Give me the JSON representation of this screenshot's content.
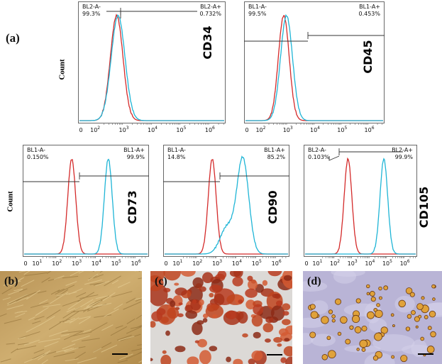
{
  "figure": {
    "panel_a_label": "(a)",
    "count_label": "Count",
    "micro_labels": [
      "(b)",
      "(c)",
      "(d)"
    ]
  },
  "colors": {
    "isotype": "#d42a2a",
    "stained": "#1fb5d6",
    "gate": "#333333",
    "b_culture": "#c9a766",
    "c_alizarin": "#b83a1f",
    "d_oilred": "#b9b4d6"
  },
  "chart_data": [
    {
      "type": "line",
      "marker": "CD34",
      "gate_left": {
        "name": "BL2-A-",
        "value": "99.3%"
      },
      "gate_right": {
        "name": "BL2-A+",
        "value": "0.732%"
      },
      "x_scale": "log",
      "x_ticks": [
        "0",
        "10^2",
        "10^3",
        "10^4",
        "10^5",
        "10^6"
      ],
      "y_tick": "0",
      "series": [
        {
          "peak_log": 2.75,
          "width": 0.22
        },
        {
          "peak_log": 2.8,
          "width": 0.24
        }
      ]
    },
    {
      "type": "line",
      "marker": "CD45",
      "gate_left": {
        "name": "BL1-A-",
        "value": "99.5%"
      },
      "gate_right": {
        "name": "BL1-A+",
        "value": "0.453%"
      },
      "x_scale": "log",
      "x_ticks": [
        "0",
        "10^2",
        "10^3",
        "10^4",
        "10^5",
        "10^6"
      ],
      "y_tick": "0",
      "series": [
        {
          "peak_log": 2.85,
          "width": 0.2
        },
        {
          "peak_log": 2.95,
          "width": 0.22
        }
      ]
    },
    {
      "type": "line",
      "marker": "CD73",
      "gate_left": {
        "name": "BL1-A-",
        "value": "0.150%"
      },
      "gate_right": {
        "name": "BL1-A+",
        "value": "99.9%"
      },
      "x_scale": "log",
      "x_ticks": [
        "0",
        "10^1",
        "10^2",
        "10^3",
        "10^4",
        "10^5",
        "10^6"
      ],
      "y_tick": "0",
      "series": [
        {
          "peak_log": 2.75,
          "width": 0.2
        },
        {
          "peak_log": 4.6,
          "width": 0.2
        }
      ]
    },
    {
      "type": "line",
      "marker": "CD90",
      "gate_left": {
        "name": "BL1-A-",
        "value": "14.8%"
      },
      "gate_right": {
        "name": "BL1-A+",
        "value": "85.2%"
      },
      "x_scale": "log",
      "x_ticks": [
        "0",
        "10^1",
        "10^2",
        "10^3",
        "10^4",
        "10^5",
        "10^6"
      ],
      "y_tick": "0",
      "series": [
        {
          "peak_log": 2.75,
          "width": 0.2
        },
        {
          "peak_log": 4.3,
          "width": 0.3
        }
      ]
    },
    {
      "type": "line",
      "marker": "CD105",
      "gate_left": {
        "name": "BL2-A-",
        "value": "0.103%"
      },
      "gate_right": {
        "name": "BL2-A+",
        "value": "99.9%"
      },
      "x_scale": "log",
      "x_ticks": [
        "0",
        "10^1",
        "10^2",
        "10^3",
        "10^4",
        "10^5",
        "10^6"
      ],
      "y_tick": "0",
      "series": [
        {
          "peak_log": 2.75,
          "width": 0.22
        },
        {
          "peak_log": 4.8,
          "width": 0.22
        }
      ]
    }
  ]
}
